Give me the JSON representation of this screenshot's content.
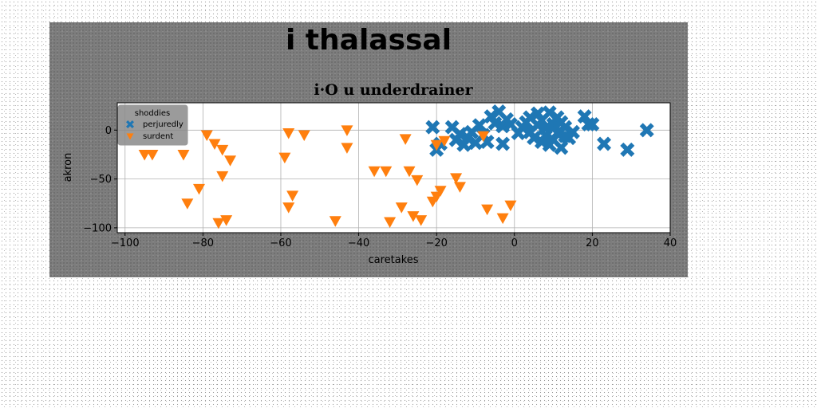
{
  "suptitle": "i  thalassal",
  "chart_data": {
    "type": "scatter",
    "title": "i·O u underdrainer",
    "xlabel": "caretakes",
    "ylabel": "akron",
    "xlim": [
      -102,
      40
    ],
    "ylim": [
      -105,
      28
    ],
    "xticks": [
      -100,
      -80,
      -60,
      -40,
      -20,
      0,
      20,
      40
    ],
    "yticks": [
      0,
      -50,
      -100
    ],
    "grid": true,
    "legend": {
      "title": "shoddies",
      "placement": "top-left"
    },
    "series": [
      {
        "name": "perjuredly",
        "color": "#1f77b4",
        "marker": "x",
        "points": [
          [
            -21,
            3
          ],
          [
            -20,
            -20
          ],
          [
            -19,
            -14
          ],
          [
            -16,
            3
          ],
          [
            -15,
            -10
          ],
          [
            -14,
            -4
          ],
          [
            -13,
            -15
          ],
          [
            -12,
            -8
          ],
          [
            -11,
            -2
          ],
          [
            -10,
            -13
          ],
          [
            -9,
            5
          ],
          [
            -8,
            -5
          ],
          [
            -7,
            -12
          ],
          [
            -6,
            14
          ],
          [
            -5,
            7
          ],
          [
            -4,
            19
          ],
          [
            -3,
            4
          ],
          [
            -3,
            -14
          ],
          [
            -2,
            11
          ],
          [
            -1,
            6
          ],
          [
            1,
            -3
          ],
          [
            2,
            3
          ],
          [
            3,
            8
          ],
          [
            4,
            13
          ],
          [
            4,
            -2
          ],
          [
            5,
            -8
          ],
          [
            6,
            5
          ],
          [
            6,
            17
          ],
          [
            7,
            10
          ],
          [
            7,
            -12
          ],
          [
            8,
            2
          ],
          [
            8,
            -5
          ],
          [
            9,
            18
          ],
          [
            9,
            -15
          ],
          [
            10,
            6
          ],
          [
            10,
            -10
          ],
          [
            11,
            13
          ],
          [
            11,
            -3
          ],
          [
            12,
            -18
          ],
          [
            12,
            8
          ],
          [
            13,
            -6
          ],
          [
            13,
            3
          ],
          [
            14,
            -8
          ],
          [
            15,
            -2
          ],
          [
            18,
            14
          ],
          [
            19,
            6
          ],
          [
            20,
            6
          ],
          [
            23,
            -14
          ],
          [
            29,
            -20
          ],
          [
            34,
            0
          ]
        ]
      },
      {
        "name": "surdent",
        "color": "#ff7f0e",
        "marker": "v",
        "points": [
          [
            -95,
            -25
          ],
          [
            -93,
            -25
          ],
          [
            -85,
            -25
          ],
          [
            -84,
            -75
          ],
          [
            -81,
            -60
          ],
          [
            -79,
            -5
          ],
          [
            -77,
            -14
          ],
          [
            -75,
            -20
          ],
          [
            -75,
            -47
          ],
          [
            -74,
            -92
          ],
          [
            -73,
            -31
          ],
          [
            -76,
            -95
          ],
          [
            -59,
            -28
          ],
          [
            -58,
            -3
          ],
          [
            -58,
            -79
          ],
          [
            -57,
            -67
          ],
          [
            -54,
            -5
          ],
          [
            -46,
            -93
          ],
          [
            -43,
            -18
          ],
          [
            -43,
            0
          ],
          [
            -36,
            -42
          ],
          [
            -33,
            -42
          ],
          [
            -32,
            -94
          ],
          [
            -29,
            -79
          ],
          [
            -28,
            -9
          ],
          [
            -27,
            -42
          ],
          [
            -26,
            -88
          ],
          [
            -25,
            -51
          ],
          [
            -24,
            -92
          ],
          [
            -21,
            -73
          ],
          [
            -20,
            -68
          ],
          [
            -19,
            -62
          ],
          [
            -18,
            -11
          ],
          [
            -20,
            -15
          ],
          [
            -15,
            -49
          ],
          [
            -14,
            -58
          ],
          [
            -8,
            -6
          ],
          [
            -7,
            -81
          ],
          [
            -3,
            -90
          ],
          [
            -1,
            -77
          ]
        ]
      }
    ]
  }
}
